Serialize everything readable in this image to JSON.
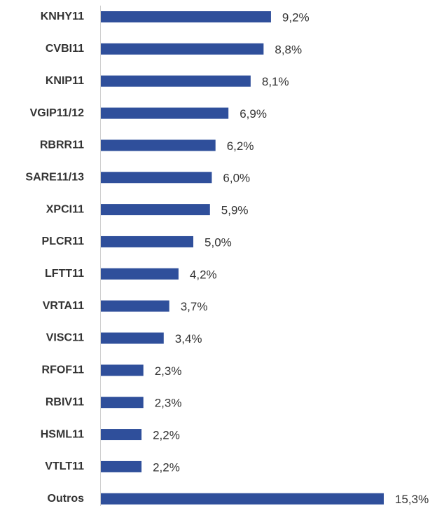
{
  "chart_data": {
    "type": "bar",
    "orientation": "horizontal",
    "color": "#2f4f9b",
    "categories": [
      "KNHY11",
      "CVBI11",
      "KNIP11",
      "VGIP11/12",
      "RBRR11",
      "SARE11/13",
      "XPCI11",
      "PLCR11",
      "LFTT11",
      "VRTA11",
      "VISC11",
      "RFOF11",
      "RBIV11",
      "HSML11",
      "VTLT11",
      "Outros"
    ],
    "values": [
      9.2,
      8.8,
      8.1,
      6.9,
      6.2,
      6.0,
      5.9,
      5.0,
      4.2,
      3.7,
      3.4,
      2.3,
      2.3,
      2.2,
      2.2,
      15.3
    ],
    "value_labels": [
      "9,2%",
      "8,8%",
      "8,1%",
      "6,9%",
      "6,2%",
      "6,0%",
      "5,9%",
      "5,0%",
      "4,2%",
      "3,7%",
      "3,4%",
      "2,3%",
      "2,3%",
      "2,2%",
      "2,2%",
      "15,3%"
    ]
  }
}
